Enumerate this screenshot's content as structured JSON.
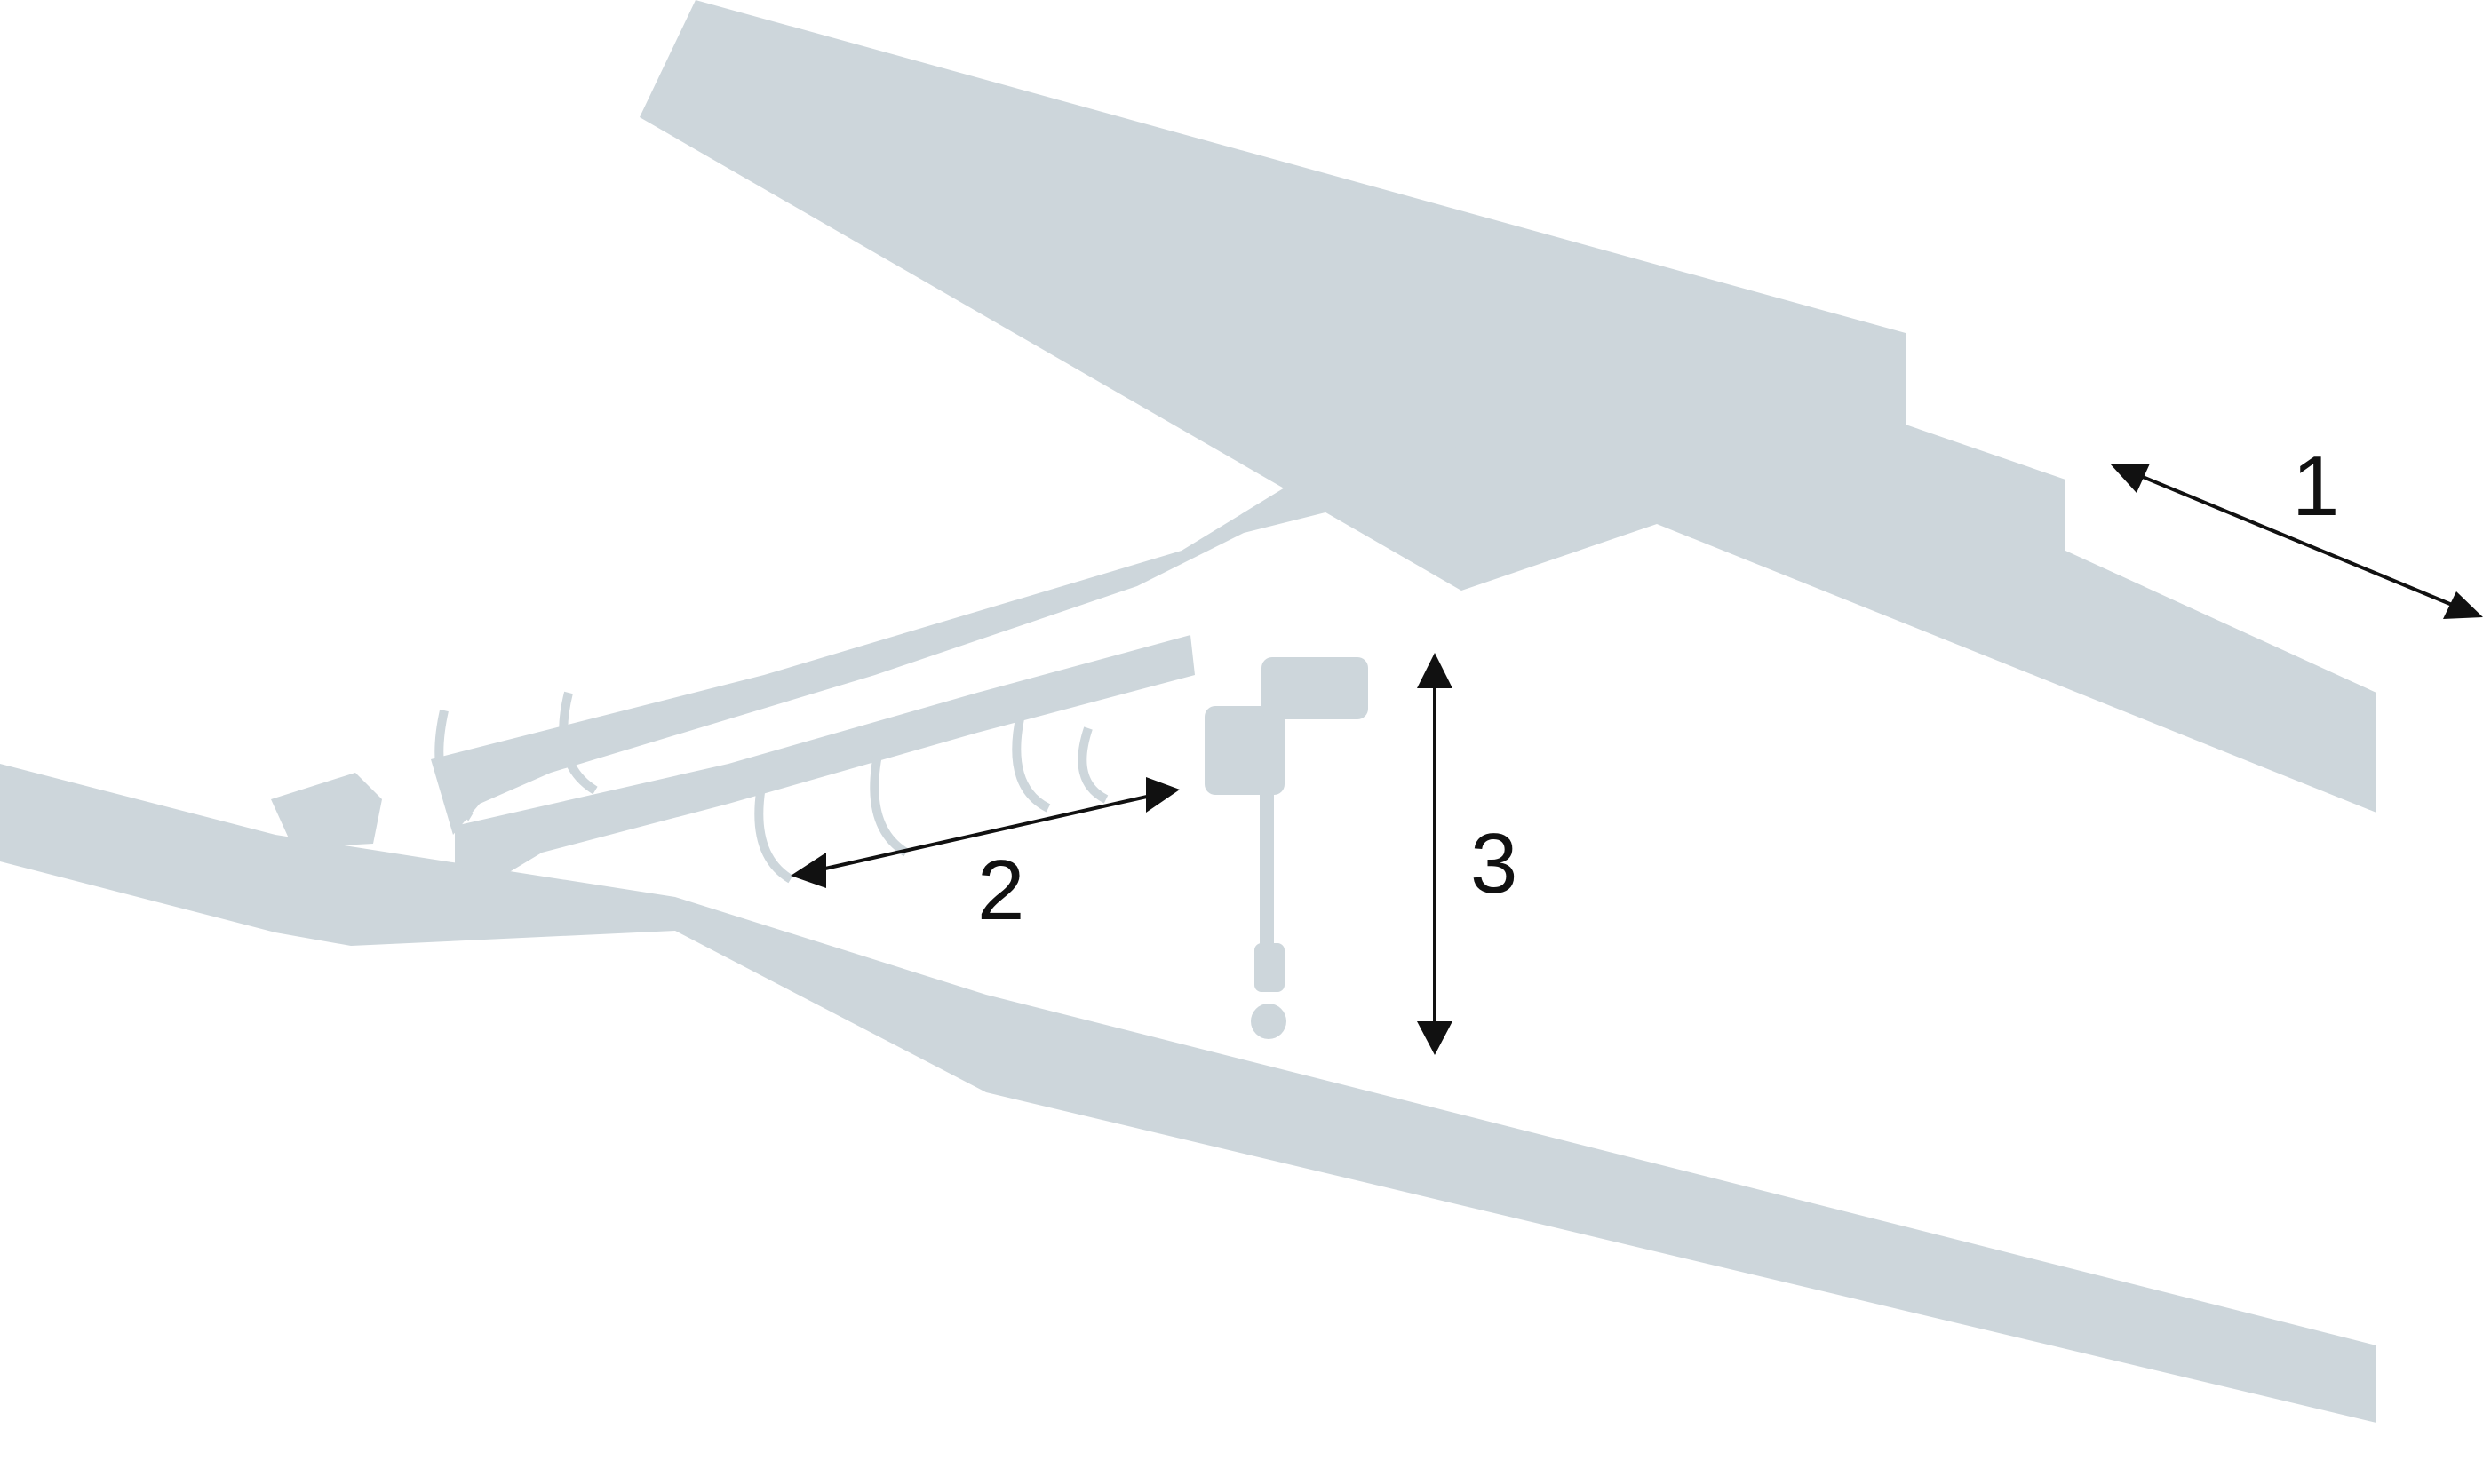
{
  "colors": {
    "structure": "#cdd6db",
    "structure_line": "#ffffff",
    "arrow": "#111111"
  },
  "callouts": {
    "one": "1",
    "two": "2",
    "three": "3"
  },
  "icons": {
    "runway": "runway-beam-icon",
    "bridge": "bridge-girder-icon",
    "hoist": "hoist-icon",
    "hook": "hook-icon"
  }
}
